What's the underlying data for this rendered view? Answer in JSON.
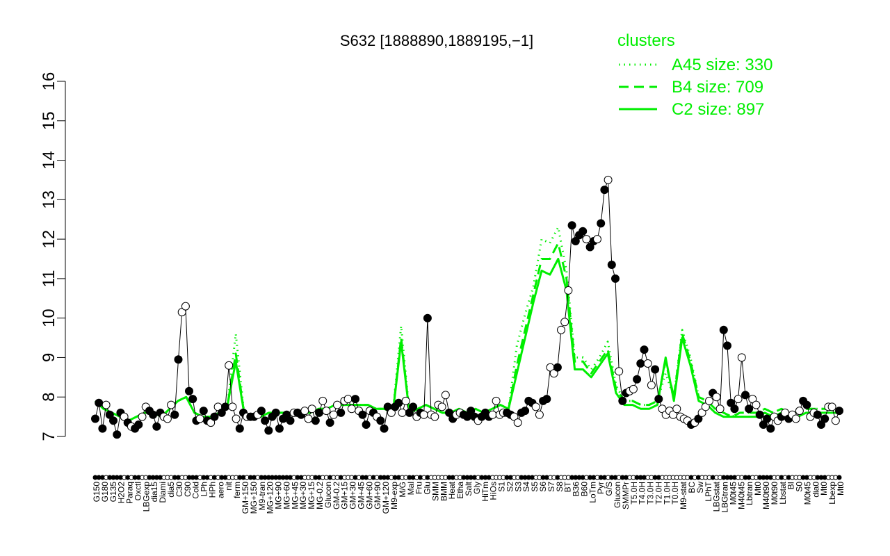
{
  "colors": {
    "series": "#00ee00",
    "axis": "#000000",
    "filled_point": "#000000",
    "open_point": "#ffffff"
  },
  "chart_data": {
    "type": "line",
    "title": "S632 [1888890,1889195,−1]",
    "xlabel": "",
    "ylabel": "",
    "ylim": [
      7,
      16
    ],
    "yticks": [
      7,
      8,
      9,
      10,
      11,
      12,
      13,
      14,
      15,
      16
    ],
    "grid": false,
    "legend": {
      "title": "clusters",
      "position": "top-right",
      "entries": [
        {
          "label": "A45 size: 330",
          "style": "dotted"
        },
        {
          "label": "B4 size: 709",
          "style": "dashed"
        },
        {
          "label": "C2 size: 897",
          "style": "solid"
        }
      ]
    },
    "x_tick_labels": [
      "G150",
      "G180",
      "G135",
      "H2O2",
      "Paraq",
      "Oxctl",
      "LBGexp",
      "dia15",
      "Diami",
      "dia5",
      "C30",
      "C90",
      "Cold",
      "LPh",
      "HPh",
      "aero",
      "nit",
      "ferm",
      "GM+150",
      "MG+150",
      "M9-tran",
      "MG+120",
      "MG+90",
      "MG+60",
      "MG+45",
      "MG+30",
      "MG+15",
      "MG-0.2",
      "Glucon",
      "GM-0.2",
      "GM+15",
      "GM+30",
      "GM+45",
      "GM+60",
      "GM+90",
      "GM+120",
      "M9-exp",
      "M/G",
      "Mal",
      "Fru",
      "Glu",
      "SMM",
      "BMM",
      "Heat",
      "Etha",
      "Salt",
      "Gly",
      "HiTm",
      "HiOs",
      "S1",
      "S2",
      "S3",
      "S4",
      "S5",
      "S6",
      "S7",
      "S8",
      "BT",
      "B36",
      "B60",
      "LoTm",
      "Pyr",
      "G/S",
      "Glucon",
      "SMMPr",
      "T5.0H",
      "T4.0H",
      "T3.0H",
      "T2.0H",
      "T1.0H",
      "T0.0H",
      "M9-stat",
      "BC",
      "Sw",
      "LPhT",
      "LBGstat",
      "LBGtran",
      "M0t45",
      "M40t45",
      "Lbtran",
      "Mt0",
      "M40t90",
      "M0t90",
      "Lbstat",
      "BI",
      "S0",
      "M0t45",
      "dia0",
      "Mt0",
      "Lbexp",
      "Mt0"
    ],
    "points": [
      [
        7.45,
        1
      ],
      [
        7.85,
        1
      ],
      [
        7.2,
        1
      ],
      [
        7.8,
        0
      ],
      [
        7.55,
        1
      ],
      [
        7.4,
        1
      ],
      [
        7.05,
        1
      ],
      [
        7.6,
        1
      ],
      [
        7.5,
        0
      ],
      [
        7.35,
        1
      ],
      [
        7.25,
        0
      ],
      [
        7.2,
        1
      ],
      [
        7.3,
        1
      ],
      [
        7.5,
        0
      ],
      [
        7.75,
        0
      ],
      [
        7.65,
        1
      ],
      [
        7.55,
        1
      ],
      [
        7.25,
        1
      ],
      [
        7.6,
        1
      ],
      [
        7.5,
        0
      ],
      [
        7.45,
        0
      ],
      [
        7.8,
        0
      ],
      [
        7.55,
        1
      ],
      [
        8.95,
        1
      ],
      [
        10.15,
        0
      ],
      [
        10.3,
        0
      ],
      [
        8.15,
        1
      ],
      [
        7.95,
        1
      ],
      [
        7.4,
        1
      ],
      [
        7.45,
        0
      ],
      [
        7.65,
        1
      ],
      [
        7.4,
        1
      ],
      [
        7.35,
        0
      ],
      [
        7.5,
        1
      ],
      [
        7.75,
        0
      ],
      [
        7.6,
        1
      ],
      [
        7.75,
        1
      ],
      [
        8.8,
        0
      ],
      [
        7.75,
        0
      ],
      [
        7.45,
        0
      ],
      [
        7.2,
        1
      ],
      [
        7.6,
        1
      ],
      [
        7.5,
        0
      ],
      [
        7.5,
        1
      ],
      [
        7.5,
        1
      ],
      [
        7.55,
        0
      ],
      [
        7.65,
        1
      ],
      [
        7.4,
        1
      ],
      [
        7.15,
        1
      ],
      [
        7.5,
        1
      ],
      [
        7.6,
        1
      ],
      [
        7.2,
        1
      ],
      [
        7.45,
        1
      ],
      [
        7.55,
        1
      ],
      [
        7.4,
        1
      ],
      [
        7.6,
        0
      ],
      [
        7.6,
        1
      ],
      [
        7.55,
        1
      ],
      [
        7.65,
        0
      ],
      [
        7.45,
        0
      ],
      [
        7.7,
        0
      ],
      [
        7.4,
        1
      ],
      [
        7.6,
        1
      ],
      [
        7.9,
        0
      ],
      [
        7.65,
        0
      ],
      [
        7.35,
        1
      ],
      [
        7.55,
        0
      ],
      [
        7.8,
        0
      ],
      [
        7.6,
        1
      ],
      [
        7.9,
        0
      ],
      [
        7.95,
        0
      ],
      [
        7.7,
        0
      ],
      [
        7.95,
        1
      ],
      [
        7.65,
        0
      ],
      [
        7.55,
        1
      ],
      [
        7.3,
        1
      ],
      [
        7.65,
        0
      ],
      [
        7.6,
        1
      ],
      [
        7.5,
        0
      ],
      [
        7.4,
        1
      ],
      [
        7.2,
        1
      ],
      [
        7.75,
        1
      ],
      [
        7.6,
        0
      ],
      [
        7.75,
        1
      ],
      [
        7.85,
        1
      ],
      [
        7.6,
        0
      ],
      [
        7.9,
        0
      ],
      [
        7.6,
        1
      ],
      [
        7.75,
        1
      ],
      [
        7.5,
        0
      ],
      [
        7.6,
        1
      ],
      [
        7.55,
        0
      ],
      [
        10.0,
        1
      ],
      [
        7.55,
        0
      ],
      [
        7.5,
        0
      ],
      [
        7.8,
        0
      ],
      [
        7.75,
        0
      ],
      [
        8.05,
        0
      ],
      [
        7.6,
        1
      ],
      [
        7.45,
        1
      ],
      [
        7.55,
        0
      ],
      [
        7.6,
        0
      ],
      [
        7.55,
        1
      ],
      [
        7.5,
        1
      ],
      [
        7.65,
        1
      ],
      [
        7.5,
        1
      ],
      [
        7.4,
        0
      ],
      [
        7.5,
        1
      ],
      [
        7.6,
        1
      ],
      [
        7.5,
        1
      ],
      [
        7.55,
        0
      ],
      [
        7.9,
        0
      ],
      [
        7.55,
        0
      ],
      [
        7.6,
        0
      ],
      [
        7.6,
        1
      ],
      [
        7.55,
        1
      ],
      [
        7.5,
        0
      ],
      [
        7.35,
        0
      ],
      [
        7.6,
        1
      ],
      [
        7.65,
        1
      ],
      [
        7.9,
        1
      ],
      [
        7.85,
        1
      ],
      [
        7.75,
        0
      ],
      [
        7.55,
        0
      ],
      [
        7.9,
        1
      ],
      [
        7.95,
        1
      ],
      [
        8.75,
        0
      ],
      [
        8.6,
        0
      ],
      [
        8.75,
        1
      ],
      [
        9.7,
        0
      ],
      [
        9.9,
        0
      ],
      [
        10.7,
        0
      ],
      [
        12.35,
        1
      ],
      [
        11.95,
        1
      ],
      [
        12.1,
        1
      ],
      [
        12.2,
        1
      ],
      [
        12.0,
        0
      ],
      [
        11.8,
        1
      ],
      [
        11.95,
        1
      ],
      [
        12.0,
        0
      ],
      [
        12.4,
        1
      ],
      [
        13.25,
        1
      ],
      [
        13.5,
        0
      ],
      [
        11.35,
        1
      ],
      [
        11.0,
        1
      ],
      [
        8.65,
        0
      ],
      [
        7.9,
        1
      ],
      [
        8.1,
        1
      ],
      [
        8.15,
        0
      ],
      [
        8.2,
        0
      ],
      [
        8.45,
        1
      ],
      [
        8.85,
        1
      ],
      [
        9.2,
        1
      ],
      [
        8.85,
        0
      ],
      [
        8.3,
        0
      ],
      [
        8.7,
        1
      ],
      [
        7.95,
        1
      ],
      [
        7.7,
        0
      ],
      [
        7.55,
        0
      ],
      [
        7.65,
        0
      ],
      [
        7.55,
        0
      ],
      [
        7.7,
        0
      ],
      [
        7.5,
        0
      ],
      [
        7.45,
        0
      ],
      [
        7.4,
        0
      ],
      [
        7.3,
        1
      ],
      [
        7.35,
        0
      ],
      [
        7.45,
        1
      ],
      [
        7.6,
        0
      ],
      [
        7.75,
        0
      ],
      [
        7.9,
        0
      ],
      [
        8.1,
        1
      ],
      [
        8.0,
        0
      ],
      [
        7.7,
        0
      ],
      [
        9.7,
        1
      ],
      [
        9.3,
        1
      ],
      [
        7.85,
        1
      ],
      [
        7.7,
        1
      ],
      [
        7.95,
        0
      ],
      [
        9.0,
        0
      ],
      [
        8.05,
        1
      ],
      [
        7.7,
        1
      ],
      [
        7.95,
        0
      ],
      [
        7.8,
        0
      ],
      [
        7.55,
        1
      ],
      [
        7.3,
        1
      ],
      [
        7.45,
        1
      ],
      [
        7.2,
        1
      ],
      [
        7.5,
        0
      ],
      [
        7.4,
        0
      ],
      [
        7.5,
        1
      ],
      [
        7.6,
        0
      ],
      [
        7.45,
        1
      ],
      [
        7.55,
        0
      ],
      [
        7.45,
        0
      ],
      [
        7.65,
        0
      ],
      [
        7.9,
        1
      ],
      [
        7.8,
        1
      ],
      [
        7.5,
        0
      ],
      [
        7.6,
        0
      ],
      [
        7.55,
        1
      ],
      [
        7.3,
        1
      ],
      [
        7.45,
        1
      ],
      [
        7.75,
        0
      ],
      [
        7.75,
        0
      ],
      [
        7.4,
        0
      ],
      [
        7.65,
        1
      ]
    ],
    "series": [
      {
        "name": "A45 size: 330",
        "style": "dotted",
        "values": [
          7.9,
          7.7,
          7.6,
          7.5,
          7.4,
          7.5,
          7.6,
          7.6,
          7.5,
          7.7,
          7.9,
          8.0,
          7.6,
          7.5,
          7.5,
          7.6,
          7.8,
          9.6,
          7.6,
          7.5,
          7.5,
          7.6,
          7.6,
          7.6,
          7.6,
          7.6,
          7.6,
          7.7,
          7.7,
          7.8,
          7.8,
          7.8,
          7.8,
          7.8,
          7.7,
          7.7,
          7.6,
          9.8,
          7.6,
          7.7,
          7.8,
          7.7,
          7.6,
          7.6,
          7.7,
          7.6,
          7.7,
          7.6,
          7.7,
          7.8,
          7.7,
          9.3,
          10.1,
          10.8,
          12.0,
          11.9,
          12.3,
          11.2,
          9.0,
          9.0,
          8.7,
          9.0,
          9.4,
          8.3,
          7.9,
          7.9,
          7.8,
          7.8,
          7.9,
          8.6,
          8.0,
          9.7,
          9.0,
          8.0,
          7.9,
          7.7,
          7.6,
          7.5,
          7.6,
          7.6,
          7.6,
          7.7,
          7.6,
          7.7,
          7.6,
          7.6,
          7.7,
          7.7,
          7.7,
          7.7,
          7.7
        ]
      },
      {
        "name": "B4 size: 709",
        "style": "dashed",
        "values": [
          7.9,
          7.7,
          7.6,
          7.5,
          7.4,
          7.5,
          7.6,
          7.6,
          7.5,
          7.7,
          7.9,
          8.0,
          7.6,
          7.5,
          7.5,
          7.6,
          7.8,
          9.1,
          7.6,
          7.5,
          7.5,
          7.6,
          7.6,
          7.6,
          7.6,
          7.6,
          7.6,
          7.7,
          7.7,
          7.8,
          7.8,
          7.8,
          7.8,
          7.8,
          7.7,
          7.7,
          7.6,
          9.5,
          7.6,
          7.7,
          7.8,
          7.7,
          7.6,
          7.6,
          7.7,
          7.6,
          7.7,
          7.6,
          7.7,
          7.8,
          7.7,
          8.8,
          9.7,
          10.6,
          11.5,
          11.5,
          11.9,
          11.0,
          8.9,
          8.9,
          8.6,
          8.9,
          9.2,
          8.2,
          7.9,
          7.9,
          7.8,
          7.8,
          7.9,
          8.9,
          8.0,
          9.6,
          8.9,
          8.0,
          7.9,
          7.7,
          7.6,
          7.5,
          7.6,
          7.6,
          7.6,
          7.7,
          7.6,
          7.7,
          7.6,
          7.6,
          7.7,
          7.7,
          7.7,
          7.7,
          7.7
        ]
      },
      {
        "name": "C2 size: 897",
        "style": "solid",
        "values": [
          7.9,
          7.7,
          7.6,
          7.5,
          7.4,
          7.5,
          7.6,
          7.6,
          7.5,
          7.7,
          7.9,
          8.0,
          7.6,
          7.5,
          7.5,
          7.6,
          7.8,
          8.9,
          7.6,
          7.5,
          7.5,
          7.6,
          7.6,
          7.6,
          7.6,
          7.6,
          7.6,
          7.7,
          7.7,
          7.8,
          7.8,
          7.8,
          7.8,
          7.8,
          7.7,
          7.7,
          7.6,
          9.4,
          7.6,
          7.7,
          7.8,
          7.7,
          7.6,
          7.6,
          7.7,
          7.6,
          7.7,
          7.6,
          7.7,
          7.8,
          7.7,
          8.6,
          9.5,
          10.4,
          11.2,
          11.1,
          11.5,
          10.7,
          8.7,
          8.7,
          8.5,
          8.8,
          9.1,
          8.1,
          7.8,
          7.8,
          7.7,
          7.7,
          7.8,
          9.0,
          7.9,
          9.5,
          8.8,
          7.9,
          7.8,
          7.6,
          7.5,
          7.5,
          7.5,
          7.5,
          7.5,
          7.6,
          7.5,
          7.6,
          7.5,
          7.5,
          7.6,
          7.6,
          7.6,
          7.6,
          7.6
        ]
      }
    ]
  }
}
